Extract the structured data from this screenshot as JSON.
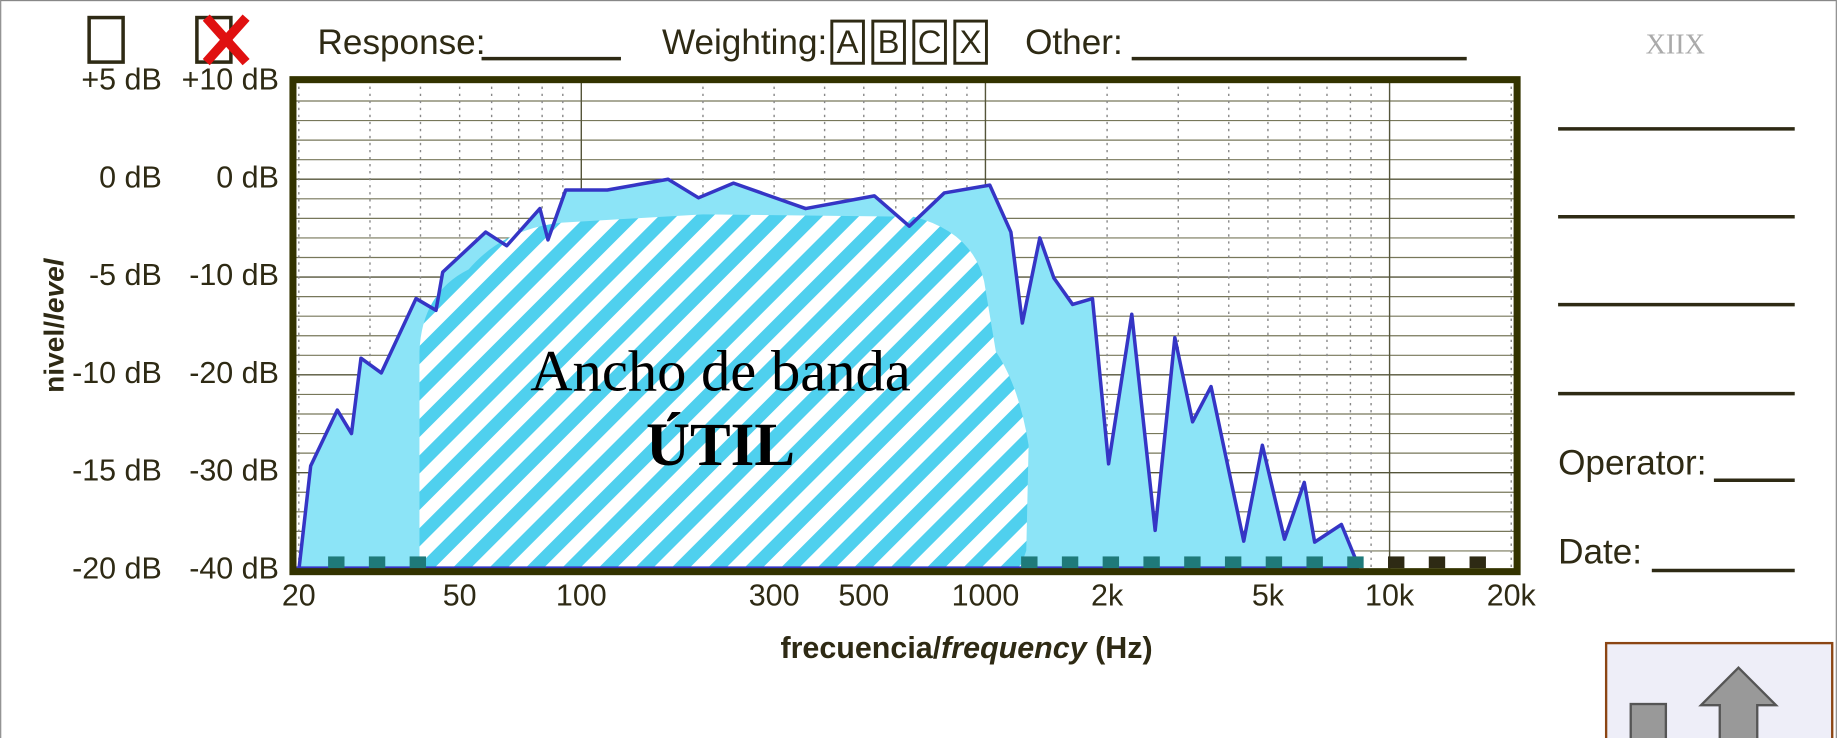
{
  "chart_data": {
    "type": "area",
    "header": {
      "response": "Response:",
      "weighting": "Weighting:",
      "weighting_options": [
        "A",
        "B",
        "C",
        "X"
      ],
      "other": "Other:",
      "logo": "XIIX"
    },
    "side": {
      "operator": "Operator:",
      "date": "Date:"
    },
    "annotation": [
      "Ancho de banda",
      "ÚTIL"
    ],
    "x_label": [
      "frecuencia/",
      "frequency",
      " (Hz)"
    ],
    "y_label": [
      "nivel/",
      "level"
    ],
    "x_log": true,
    "xlim": [
      20,
      20000
    ],
    "xticks": [
      20,
      50,
      100,
      300,
      500,
      1000,
      {
        "value": 2000,
        "label": "2k"
      },
      {
        "value": 5000,
        "label": "5k"
      },
      {
        "value": 10000,
        "label": "10k"
      },
      {
        "value": 20000,
        "label": "20k"
      }
    ],
    "minor_xticks": [
      30,
      40,
      60,
      70,
      80,
      90,
      200,
      400,
      600,
      700,
      800,
      900,
      3000,
      4000,
      6000,
      7000,
      8000,
      9000
    ],
    "ylim": [
      -20,
      5
    ],
    "yticks": [
      {
        "value": 5,
        "label": "+5 dB"
      },
      {
        "value": 0,
        "label": "0 dB"
      },
      {
        "value": -5,
        "label": "-5 dB"
      },
      {
        "value": -10,
        "label": "-10 dB"
      },
      {
        "value": -15,
        "label": "-15 dB"
      },
      {
        "value": -20,
        "label": "-20 dB"
      }
    ],
    "y2lim": [
      -40,
      10
    ],
    "y2ticks": [
      {
        "value": 10,
        "label": "+10 dB"
      },
      {
        "value": 0,
        "label": "0 dB"
      },
      {
        "value": -10,
        "label": "-10 dB"
      },
      {
        "value": -20,
        "label": "-20 dB"
      },
      {
        "value": -30,
        "label": "-30 dB"
      },
      {
        "value": -40,
        "label": "-40 dB"
      }
    ],
    "minor_y2ticks": [
      -38,
      -36,
      -34,
      -32,
      -28,
      -26,
      -24,
      -22,
      -18,
      -16,
      -14,
      -12,
      -8,
      -6,
      -4,
      -2,
      2,
      4,
      6,
      8
    ],
    "x": [
      20,
      21.4,
      24.9,
      27,
      28.5,
      32,
      39,
      43.7,
      45.4,
      58,
      65.4,
      79,
      82.7,
      91.5,
      116,
      164,
      195,
      238,
      359,
      531,
      648,
      791,
      1025,
      1156,
      1234,
      1363,
      1477,
      1643,
      1840,
      2017,
      2302,
      2630,
      2942,
      3255,
      3616,
      4356,
      4844,
      5495,
      6150,
      6525,
      7600,
      8347
    ],
    "series": [
      {
        "axis": "y2",
        "color": "#3535c5",
        "fill": "#8ce4f7",
        "values": [
          -40,
          -29.3,
          -23.6,
          -26,
          -18.3,
          -19.8,
          -12.2,
          -13.4,
          -9.5,
          -5.4,
          -6.8,
          -3,
          -6.2,
          -1.1,
          -1.1,
          0,
          -1.9,
          -0.4,
          -3,
          -1.7,
          -4.8,
          -1.4,
          -0.6,
          -5.4,
          -14.7,
          -6,
          -10.1,
          -12.8,
          -12.2,
          -29.1,
          -13.8,
          -35.9,
          -16.2,
          -24.8,
          -21.2,
          -37,
          -27.2,
          -36.8,
          -31,
          -37.1,
          -35.3,
          -39.4
        ]
      }
    ]
  }
}
